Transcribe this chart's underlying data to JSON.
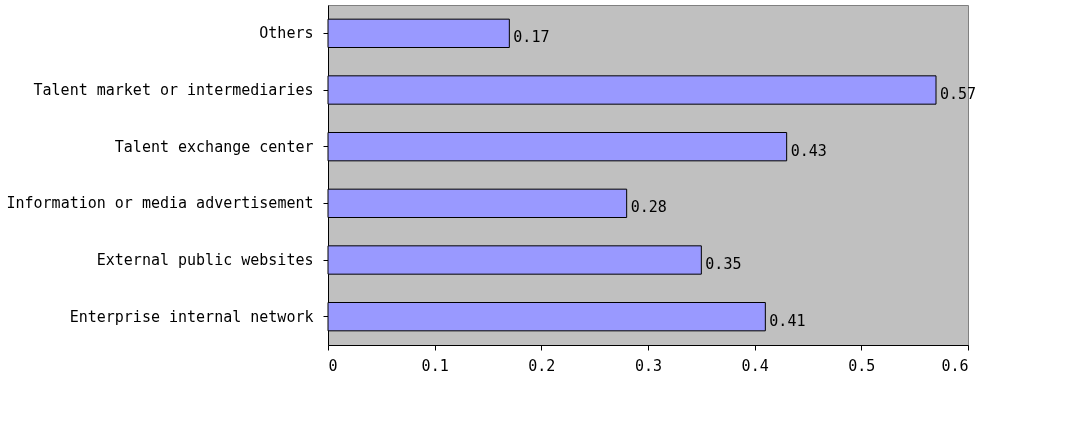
{
  "chart_data": {
    "type": "bar",
    "orientation": "horizontal",
    "categories": [
      "Others",
      "Talent market or intermediaries",
      "Talent exchange center",
      "Information or media advertisement",
      "External public websites",
      "Enterprise internal network"
    ],
    "values": [
      0.17,
      0.57,
      0.43,
      0.28,
      0.35,
      0.41
    ],
    "color": "#9999ff",
    "xlim": [
      0,
      0.6
    ],
    "xticks": [
      0,
      0.1,
      0.2,
      0.3,
      0.4,
      0.5,
      0.6
    ],
    "data_labels": true,
    "grid": false
  }
}
